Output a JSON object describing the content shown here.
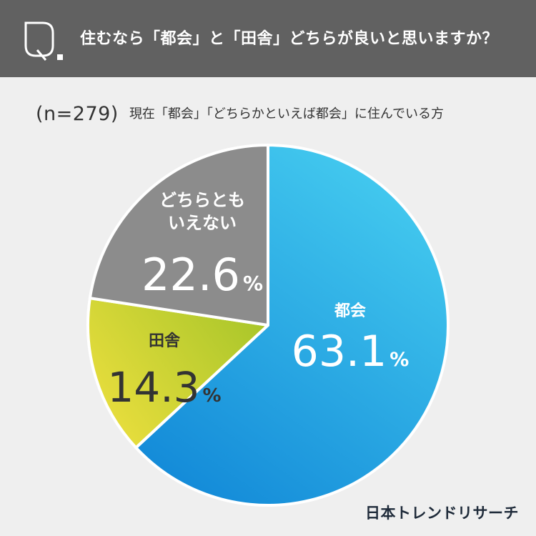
{
  "header": {
    "icon": "q-letter-icon",
    "question": "住むなら「都会」と「田舎」どちらが良いと思いますか？"
  },
  "subtitle": {
    "sample_size": "(n=279)",
    "description": "現在「都会」「どちらかといえば都会」に住んでいる方"
  },
  "chart_data": {
    "type": "pie",
    "unit": "%",
    "slices": [
      {
        "label": "都会",
        "value": 63.1,
        "value_text": "63.1",
        "color": "#27a5e4"
      },
      {
        "label": "田舎",
        "value": 14.3,
        "value_text": "14.3",
        "color": "#cfd43a"
      },
      {
        "label": "どちらとも\nいえない",
        "value": 22.6,
        "value_text": "22.6",
        "color": "#8c8c8c"
      }
    ]
  },
  "footer": {
    "brand": "日本トレンドリサーチ"
  }
}
